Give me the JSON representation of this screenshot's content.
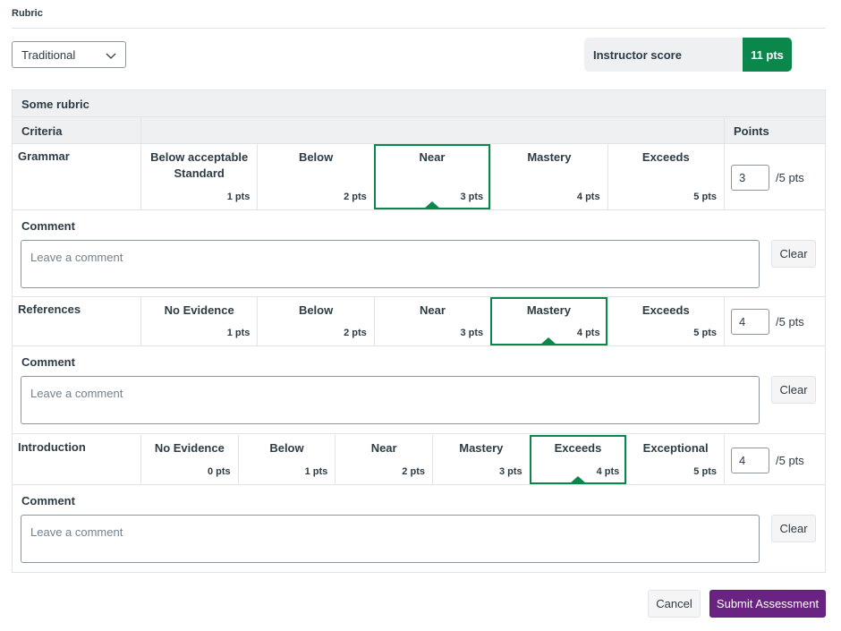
{
  "header": {
    "title": "Rubric"
  },
  "view_select": {
    "value": "Traditional"
  },
  "score": {
    "label": "Instructor score",
    "value": "11 pts",
    "accent": "#0b874b"
  },
  "rubric": {
    "title": "Some rubric",
    "col_criteria": "Criteria",
    "col_points": "Points",
    "criteria": [
      {
        "name": "Grammar",
        "ratings": [
          {
            "desc": "Below acceptable Standard",
            "points": "1 pts"
          },
          {
            "desc": "Below",
            "points": "2 pts"
          },
          {
            "desc": "Near",
            "points": "3 pts"
          },
          {
            "desc": "Mastery",
            "points": "4 pts"
          },
          {
            "desc": "Exceeds",
            "points": "5 pts"
          }
        ],
        "selected_index": 2,
        "score": "3",
        "max": "/5 pts",
        "comment_label": "Comment",
        "comment_placeholder": "Leave a comment",
        "clear_label": "Clear"
      },
      {
        "name": "References",
        "ratings": [
          {
            "desc": "No Evidence",
            "points": "1 pts"
          },
          {
            "desc": "Below",
            "points": "2 pts"
          },
          {
            "desc": "Near",
            "points": "3 pts"
          },
          {
            "desc": "Mastery",
            "points": "4 pts"
          },
          {
            "desc": "Exceeds",
            "points": "5 pts"
          }
        ],
        "selected_index": 3,
        "score": "4",
        "max": "/5 pts",
        "comment_label": "Comment",
        "comment_placeholder": "Leave a comment",
        "clear_label": "Clear"
      },
      {
        "name": "Introduction",
        "ratings": [
          {
            "desc": "No Evidence",
            "points": "0 pts"
          },
          {
            "desc": "Below",
            "points": "1 pts"
          },
          {
            "desc": "Near",
            "points": "2 pts"
          },
          {
            "desc": "Mastery",
            "points": "3 pts"
          },
          {
            "desc": "Exceeds",
            "points": "4 pts"
          },
          {
            "desc": "Exceptional",
            "points": "5 pts"
          }
        ],
        "selected_index": 4,
        "score": "4",
        "max": "/5 pts",
        "comment_label": "Comment",
        "comment_placeholder": "Leave a comment",
        "clear_label": "Clear"
      }
    ]
  },
  "footer": {
    "cancel_label": "Cancel",
    "submit_label": "Submit Assessment",
    "submit_color": "#6a2383"
  }
}
